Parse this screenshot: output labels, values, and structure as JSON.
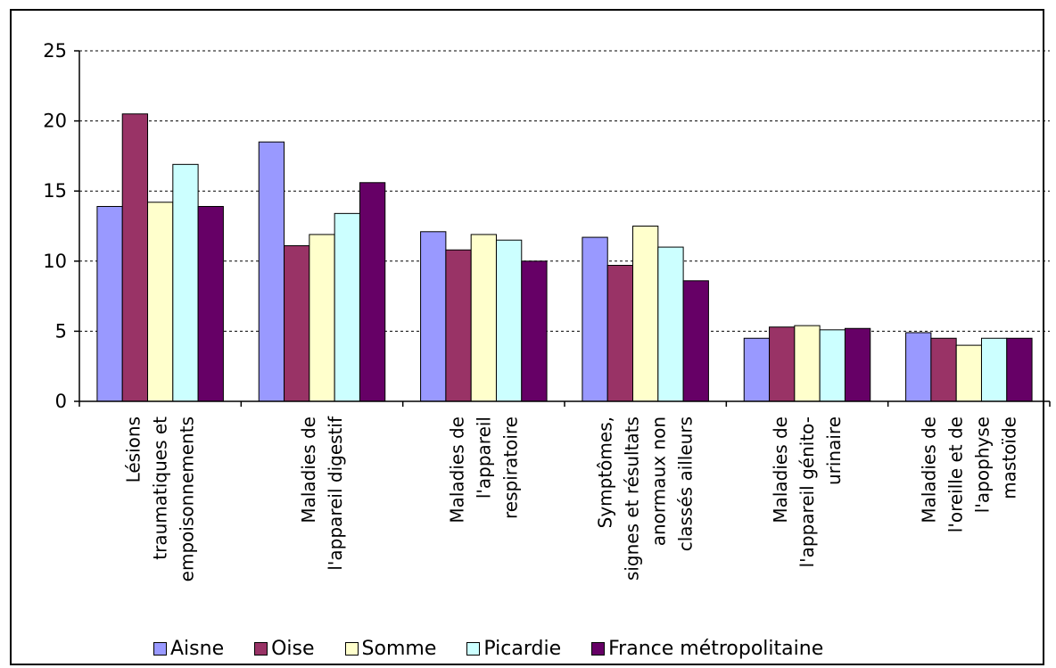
{
  "chart_data": {
    "type": "bar",
    "categories": [
      [
        "Lésions",
        "traumatiques et",
        "empoisonnements"
      ],
      [
        "Maladies de",
        "l'appareil digestif"
      ],
      [
        "Maladies de",
        "l'appareil",
        "respiratoire"
      ],
      [
        "Symptômes,",
        "signes et résultats",
        "anormaux non",
        "classés ailleurs"
      ],
      [
        "Maladies de",
        "l'appareil génito-",
        "urinaire"
      ],
      [
        "Maladies de",
        "l'oreille et de",
        "l'apophyse",
        "mastoïde"
      ]
    ],
    "series": [
      {
        "name": "Aisne",
        "color": "#9999ff",
        "values": [
          13.9,
          18.5,
          12.1,
          11.7,
          4.5,
          4.9
        ]
      },
      {
        "name": "Oise",
        "color": "#993366",
        "values": [
          20.5,
          11.1,
          10.8,
          9.7,
          5.3,
          4.5
        ]
      },
      {
        "name": "Somme",
        "color": "#ffffcc",
        "values": [
          14.2,
          11.9,
          11.9,
          12.5,
          5.4,
          4.0
        ]
      },
      {
        "name": "Picardie",
        "color": "#ccffff",
        "values": [
          16.9,
          13.4,
          11.5,
          11.0,
          5.1,
          4.5
        ]
      },
      {
        "name": "France métropolitaine",
        "color": "#660066",
        "values": [
          13.9,
          15.6,
          10.0,
          8.6,
          5.2,
          4.5
        ]
      }
    ],
    "ylim": [
      0,
      25
    ],
    "yticks": [
      0,
      5,
      10,
      15,
      20,
      25
    ],
    "grid": true,
    "legend_position": "bottom"
  }
}
